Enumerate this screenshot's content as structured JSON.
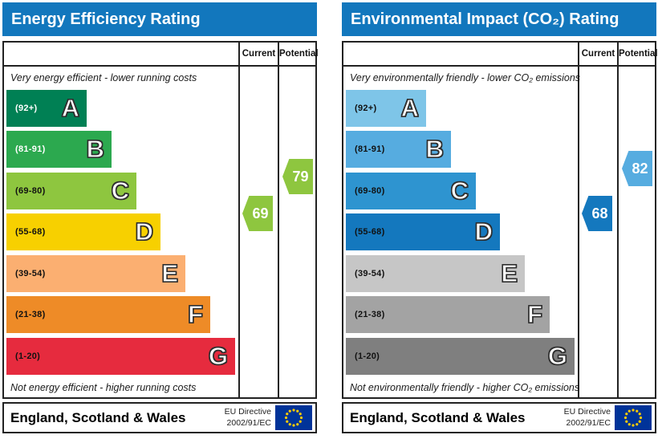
{
  "chart_data": [
    {
      "type": "bar",
      "id": "energy-efficiency",
      "title": "Energy Efficiency Rating",
      "top_caption": "Very energy efficient - lower running costs",
      "bottom_caption": "Not energy efficient - higher running costs",
      "columns": [
        "Current",
        "Potential"
      ],
      "header_color": "#1277bd",
      "categories": [
        "A (92+)",
        "B (81-91)",
        "C (69-80)",
        "D (55-68)",
        "E (39-54)",
        "F (21-38)",
        "G (1-20)"
      ],
      "bands": [
        {
          "letter": "A",
          "range_label": "(92+)",
          "min": 92,
          "max": 100,
          "color": "#008054",
          "label_color": "#ffffff"
        },
        {
          "letter": "B",
          "range_label": "(81-91)",
          "min": 81,
          "max": 91,
          "color": "#2ca94f",
          "label_color": "#ffffff"
        },
        {
          "letter": "C",
          "range_label": "(69-80)",
          "min": 69,
          "max": 80,
          "color": "#8ec63f",
          "label_color": "#111111"
        },
        {
          "letter": "D",
          "range_label": "(55-68)",
          "min": 55,
          "max": 68,
          "color": "#f7d000",
          "label_color": "#111111"
        },
        {
          "letter": "E",
          "range_label": "(39-54)",
          "min": 39,
          "max": 54,
          "color": "#fbaf71",
          "label_color": "#111111"
        },
        {
          "letter": "F",
          "range_label": "(21-38)",
          "min": 21,
          "max": 38,
          "color": "#ee8b27",
          "label_color": "#111111"
        },
        {
          "letter": "G",
          "range_label": "(1-20)",
          "min": 1,
          "max": 20,
          "color": "#e62b3e",
          "label_color": "#111111"
        }
      ],
      "series": [
        {
          "name": "Current",
          "value": 69,
          "band": "C",
          "color": "#8ec63f"
        },
        {
          "name": "Potential",
          "value": 79,
          "band": "C",
          "color": "#8ec63f"
        }
      ],
      "footer": {
        "region": "England, Scotland & Wales",
        "directive_line1": "EU Directive",
        "directive_line2": "2002/91/EC"
      }
    },
    {
      "type": "bar",
      "id": "environmental-impact-co2",
      "title": "Environmental Impact (CO₂) Rating",
      "top_caption": "Very environmentally friendly - lower CO₂ emissions",
      "bottom_caption": "Not environmentally friendly - higher CO₂ emissions",
      "columns": [
        "Current",
        "Potential"
      ],
      "header_color": "#1277bd",
      "categories": [
        "A (92+)",
        "B (81-91)",
        "C (69-80)",
        "D (55-68)",
        "E (39-54)",
        "F (21-38)",
        "G (1-20)"
      ],
      "bands": [
        {
          "letter": "A",
          "range_label": "(92+)",
          "min": 92,
          "max": 100,
          "color": "#7ec5e8",
          "label_color": "#111111"
        },
        {
          "letter": "B",
          "range_label": "(81-91)",
          "min": 81,
          "max": 91,
          "color": "#56ace0",
          "label_color": "#111111"
        },
        {
          "letter": "C",
          "range_label": "(69-80)",
          "min": 69,
          "max": 80,
          "color": "#2e94d0",
          "label_color": "#111111"
        },
        {
          "letter": "D",
          "range_label": "(55-68)",
          "min": 55,
          "max": 68,
          "color": "#1478be",
          "label_color": "#111111"
        },
        {
          "letter": "E",
          "range_label": "(39-54)",
          "min": 39,
          "max": 54,
          "color": "#c6c6c6",
          "label_color": "#111111"
        },
        {
          "letter": "F",
          "range_label": "(21-38)",
          "min": 21,
          "max": 38,
          "color": "#a3a3a3",
          "label_color": "#111111"
        },
        {
          "letter": "G",
          "range_label": "(1-20)",
          "min": 1,
          "max": 20,
          "color": "#7f7f7f",
          "label_color": "#111111"
        }
      ],
      "series": [
        {
          "name": "Current",
          "value": 68,
          "band": "D",
          "color": "#1478be"
        },
        {
          "name": "Potential",
          "value": 82,
          "band": "B",
          "color": "#56ace0"
        }
      ],
      "footer": {
        "region": "England, Scotland & Wales",
        "directive_line1": "EU Directive",
        "directive_line2": "2002/91/EC"
      }
    }
  ],
  "eu_flag": {
    "background": "#003399",
    "star_color": "#ffcc00"
  }
}
